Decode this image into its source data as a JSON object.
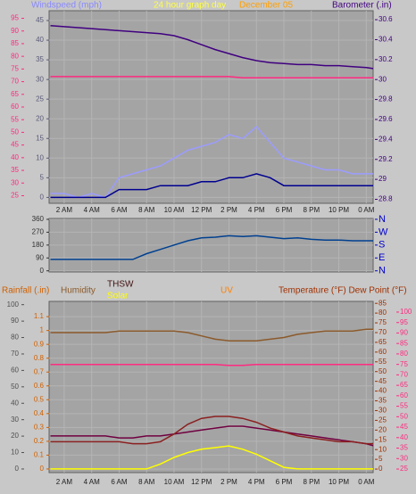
{
  "chart_data": [
    {
      "type": "line",
      "title": "24 hour graph day",
      "subtitle": "December 05",
      "x": [
        1,
        2,
        3,
        4,
        5,
        6,
        7,
        8,
        9,
        10,
        11,
        12,
        13,
        14,
        15,
        16,
        17,
        18,
        19,
        20,
        21,
        22,
        23,
        24,
        24.5
      ],
      "xlim": [
        0.9,
        24.5
      ],
      "xticks": [
        {
          "value": 2,
          "label": "2 AM"
        },
        {
          "value": 4,
          "label": "4 AM"
        },
        {
          "value": 6,
          "label": "6 AM"
        },
        {
          "value": 8,
          "label": "8 AM"
        },
        {
          "value": 10,
          "label": "10 AM"
        },
        {
          "value": 12,
          "label": "12 PM"
        },
        {
          "value": 14,
          "label": "2 PM"
        },
        {
          "value": 16,
          "label": "4 PM"
        },
        {
          "value": 18,
          "label": "6 PM"
        },
        {
          "value": 20,
          "label": "8 PM"
        },
        {
          "value": 22,
          "label": "10 PM"
        },
        {
          "value": 24,
          "label": "0 AM"
        }
      ],
      "grid": true,
      "axes": [
        {
          "label": "Windspeed (mph)",
          "side": "left",
          "color": "#5a5a7a",
          "ylim": [
            -1.5,
            47.5
          ],
          "yticks": [
            0,
            5,
            10,
            15,
            20,
            25,
            30,
            35,
            40,
            45
          ]
        },
        {
          "side": "left",
          "color": "#ff2a80",
          "ylim": [
            22,
            98
          ],
          "yticks": [
            25,
            30,
            35,
            40,
            45,
            50,
            55,
            60,
            65,
            70,
            75,
            80,
            85,
            90,
            95
          ]
        },
        {
          "label": "Barometer (.in)",
          "side": "right",
          "color": "#400080",
          "ylim": [
            28.76,
            30.69
          ],
          "yticks": [
            28.8,
            29,
            29.2,
            29.4,
            29.6,
            29.8,
            30,
            30.2,
            30.4,
            30.6
          ]
        }
      ],
      "series": [
        {
          "color": "#9c9cff",
          "axis": 0,
          "values": [
            1,
            1,
            0,
            1,
            0,
            5,
            6,
            7,
            8,
            10,
            12,
            13,
            14,
            16,
            15,
            18,
            14,
            10,
            9,
            8,
            7,
            7,
            6,
            6,
            6
          ]
        },
        {
          "color": "#000090",
          "axis": 0,
          "values": [
            0,
            0,
            0,
            0,
            0,
            2,
            2,
            2,
            3,
            3,
            3,
            4,
            4,
            5,
            5,
            6,
            5,
            3,
            3,
            3,
            3,
            3,
            3,
            3,
            3
          ]
        },
        {
          "color": "#ff2a80",
          "axis": 1,
          "values": [
            72,
            72,
            72,
            72,
            72,
            72,
            72,
            72,
            72,
            72,
            72,
            72,
            72,
            72,
            71.5,
            71.5,
            71.5,
            71.5,
            71.5,
            71.5,
            71.5,
            71.5,
            71.5,
            71.5,
            71.5
          ]
        },
        {
          "color": "#400080",
          "axis": 2,
          "values": [
            30.54,
            30.53,
            30.52,
            30.51,
            30.5,
            30.49,
            30.48,
            30.47,
            30.46,
            30.44,
            30.4,
            30.35,
            30.3,
            30.26,
            30.22,
            30.19,
            30.17,
            30.16,
            30.15,
            30.15,
            30.14,
            30.14,
            30.13,
            30.12,
            30.11
          ]
        }
      ]
    },
    {
      "type": "line",
      "x": [
        1,
        2,
        3,
        4,
        5,
        6,
        7,
        8,
        9,
        10,
        11,
        12,
        13,
        14,
        15,
        16,
        17,
        18,
        19,
        20,
        21,
        22,
        23,
        24,
        24.5
      ],
      "xlim": [
        0.9,
        24.5
      ],
      "xticks": [
        2,
        4,
        6,
        8,
        10,
        12,
        14,
        16,
        18,
        20,
        22,
        24
      ],
      "grid": true,
      "axes": [
        {
          "side": "left",
          "color": "#303030",
          "ylim": [
            -8,
            366
          ],
          "yticks": [
            0,
            90,
            180,
            270,
            360
          ]
        },
        {
          "side": "right",
          "color": "#0000cc",
          "ylim": [
            -8,
            366
          ],
          "yticks": [
            {
              "value": 360,
              "label": "N"
            },
            {
              "value": 270,
              "label": "W"
            },
            {
              "value": 180,
              "label": "S"
            },
            {
              "value": 90,
              "label": "E"
            },
            {
              "value": 0,
              "label": "N"
            }
          ]
        }
      ],
      "series": [
        {
          "color": "#004090",
          "axis": 0,
          "values": [
            80,
            80,
            80,
            80,
            80,
            80,
            80,
            120,
            150,
            180,
            210,
            230,
            235,
            245,
            240,
            245,
            235,
            225,
            230,
            220,
            215,
            215,
            210,
            210,
            210
          ]
        }
      ]
    },
    {
      "type": "line",
      "x": [
        1,
        2,
        3,
        4,
        5,
        6,
        7,
        8,
        9,
        10,
        11,
        12,
        13,
        14,
        15,
        16,
        17,
        18,
        19,
        20,
        21,
        22,
        23,
        24,
        24.5
      ],
      "xlim": [
        0.9,
        24.5
      ],
      "xticks": [
        {
          "value": 2,
          "label": "2 AM"
        },
        {
          "value": 4,
          "label": "4 AM"
        },
        {
          "value": 6,
          "label": "6 AM"
        },
        {
          "value": 8,
          "label": "8 AM"
        },
        {
          "value": 10,
          "label": "10 AM"
        },
        {
          "value": 12,
          "label": "12 PM"
        },
        {
          "value": 14,
          "label": "2 PM"
        },
        {
          "value": 16,
          "label": "4 PM"
        },
        {
          "value": 18,
          "label": "6 PM"
        },
        {
          "value": 20,
          "label": "8 PM"
        },
        {
          "value": 22,
          "label": "10 PM"
        },
        {
          "value": 24,
          "label": "0 AM"
        }
      ],
      "grid": true,
      "annotations": [
        "UV"
      ],
      "axes": [
        {
          "label": "Rainfall (.in)",
          "side": "left",
          "color": "#d06000",
          "ylim": [
            -0.026,
            1.21
          ],
          "yticks": [
            0,
            0.1,
            0.2,
            0.3,
            0.4,
            0.5,
            0.6,
            0.7,
            0.8,
            0.9,
            1,
            1.1
          ]
        },
        {
          "side": "left",
          "color": "#505050",
          "ylim": [
            -2.2,
            102
          ],
          "yticks": [
            0,
            10,
            20,
            30,
            40,
            50,
            60,
            70,
            80,
            90,
            100
          ]
        },
        {
          "label": "Temperature (°F) Dew Point (°F)",
          "side": "right",
          "color": "#a03000",
          "ylim": [
            -1.8,
            86
          ],
          "yticks": [
            0,
            5,
            10,
            15,
            20,
            25,
            30,
            35,
            40,
            45,
            50,
            55,
            60,
            65,
            70,
            75,
            80,
            85
          ]
        },
        {
          "side": "right",
          "color": "#ff2a80",
          "ylim": [
            23.3,
            105.1
          ],
          "yticks": [
            25,
            30,
            35,
            40,
            45,
            50,
            55,
            60,
            65,
            70,
            75,
            80,
            85,
            90,
            95,
            100
          ]
        }
      ],
      "series": [
        {
          "name": "Humidity",
          "color": "#8b5a2b",
          "axis": 1,
          "values": [
            83,
            83,
            83,
            83,
            83,
            84,
            84,
            84,
            84,
            84,
            83,
            81,
            79,
            78,
            78,
            78,
            79,
            80,
            82,
            83,
            84,
            84,
            84,
            85,
            85
          ]
        },
        {
          "color": "#ff2a80",
          "axis": 3,
          "values": [
            75,
            75,
            75,
            75,
            75,
            75,
            75,
            75,
            75,
            75,
            75,
            75,
            75,
            74.5,
            74.5,
            75,
            75,
            75,
            75,
            75,
            75,
            75,
            75,
            75,
            75
          ]
        },
        {
          "color": "#700040",
          "axis": 2,
          "values": [
            17,
            17,
            17,
            17,
            17,
            16,
            16,
            17,
            17,
            18,
            19,
            20,
            21,
            22,
            22,
            21,
            20,
            19,
            18,
            17,
            16,
            15,
            14,
            13,
            12
          ]
        },
        {
          "name": "THSW",
          "color": "#8b2020",
          "axis": 2,
          "values": [
            14,
            14,
            14,
            14,
            14,
            14,
            13,
            13,
            14,
            18,
            23,
            26,
            27,
            27,
            26,
            24,
            21,
            19,
            17,
            16,
            15,
            14,
            14,
            13,
            13
          ]
        },
        {
          "name": "Solar",
          "color": "#ffff00",
          "axis": 1,
          "values": [
            0,
            0,
            0,
            0,
            0,
            0,
            0,
            0,
            3,
            7,
            10,
            12,
            13,
            14,
            12,
            9,
            5,
            1,
            0,
            0,
            0,
            0,
            0,
            0,
            0
          ]
        }
      ]
    }
  ]
}
